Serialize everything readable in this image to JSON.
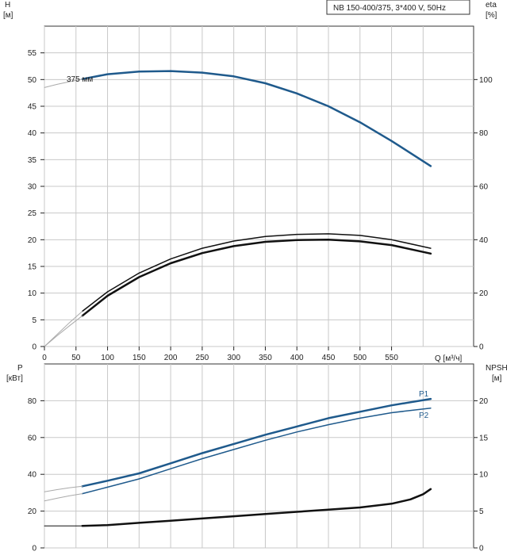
{
  "title": "NB 150-400/375, 3*400 V, 50Hz",
  "colors": {
    "blue": "#1f5a8c",
    "black": "#111111",
    "thin": "#aaaaaa",
    "grid": "#c8c8c8"
  },
  "chart_data": [
    {
      "type": "line",
      "name": "performance",
      "x_label": "Q [м³/ч]",
      "x_ticks": [
        0,
        50,
        100,
        150,
        200,
        250,
        300,
        350,
        400,
        450,
        500,
        550
      ],
      "xlim": [
        0,
        680
      ],
      "left_axis": {
        "label_top": "H",
        "label_unit": "[м]",
        "ylim": [
          0,
          60
        ],
        "ticks": [
          0,
          5,
          10,
          15,
          20,
          25,
          30,
          35,
          40,
          45,
          50,
          55
        ]
      },
      "right_axis": {
        "label_top": "eta",
        "label_unit": "[%]",
        "ylim": [
          0,
          120
        ],
        "ticks": [
          0,
          20,
          40,
          60,
          80,
          100
        ]
      },
      "annotations": [
        {
          "text": "375 мм",
          "x": 60,
          "y": 50.1
        }
      ],
      "series": [
        {
          "axis": "left",
          "color": "#1f5a8c",
          "width": 2.5,
          "label": "375 мм",
          "x": [
            60,
            100,
            150,
            200,
            250,
            300,
            350,
            400,
            450,
            500,
            550,
            612
          ],
          "y": [
            50.1,
            51.0,
            51.5,
            51.6,
            51.3,
            50.6,
            49.3,
            47.4,
            45.0,
            42.0,
            38.5,
            33.8
          ]
        },
        {
          "axis": "left",
          "color": "#aaaaaa",
          "width": 1,
          "label": "",
          "x": [
            0,
            20,
            40,
            60
          ],
          "y": [
            48.5,
            49.1,
            49.6,
            50.1
          ]
        },
        {
          "axis": "right",
          "color": "#111111",
          "width": 1.5,
          "label": "",
          "x": [
            60,
            100,
            150,
            200,
            250,
            300,
            350,
            400,
            450,
            500,
            550,
            612
          ],
          "y": [
            13.2,
            20.5,
            27.5,
            32.8,
            36.8,
            39.5,
            41.2,
            42.0,
            42.2,
            41.6,
            40.0,
            36.8
          ]
        },
        {
          "axis": "right",
          "color": "#111111",
          "width": 2.5,
          "label": "",
          "x": [
            60,
            100,
            150,
            200,
            250,
            300,
            350,
            400,
            450,
            500,
            550,
            612
          ],
          "y": [
            11.5,
            19.0,
            26.0,
            31.2,
            35.0,
            37.6,
            39.2,
            39.9,
            40.0,
            39.4,
            38.0,
            34.8
          ]
        },
        {
          "axis": "right",
          "color": "#aaaaaa",
          "width": 1,
          "label": "",
          "x": [
            0,
            20,
            40,
            60
          ],
          "y": [
            0,
            4.5,
            9.0,
            13.2
          ]
        },
        {
          "axis": "right",
          "color": "#aaaaaa",
          "width": 1,
          "label": "",
          "x": [
            0,
            20,
            40,
            60
          ],
          "y": [
            0,
            4.0,
            7.8,
            11.5
          ]
        }
      ]
    },
    {
      "type": "line",
      "name": "power-npsh",
      "xlim": [
        0,
        680
      ],
      "left_axis": {
        "label_top": "P",
        "label_unit": "[кВт]",
        "ylim": [
          0,
          100
        ],
        "ticks": [
          0,
          20,
          40,
          60,
          80
        ]
      },
      "right_axis": {
        "label_top": "NPSH",
        "label_unit": "[м]",
        "ylim": [
          0,
          25
        ],
        "ticks": [
          0,
          5,
          10,
          15,
          20
        ]
      },
      "series": [
        {
          "axis": "left",
          "color": "#1f5a8c",
          "width": 2.5,
          "label": "P1",
          "x": [
            60,
            100,
            150,
            200,
            250,
            300,
            350,
            400,
            450,
            500,
            550,
            612
          ],
          "y": [
            33.5,
            36.5,
            40.5,
            46.0,
            51.5,
            56.5,
            61.5,
            66.0,
            70.5,
            74.0,
            77.5,
            81.0
          ]
        },
        {
          "axis": "left",
          "color": "#1f5a8c",
          "width": 1.5,
          "label": "P2",
          "x": [
            60,
            100,
            150,
            200,
            250,
            300,
            350,
            400,
            450,
            500,
            550,
            612
          ],
          "y": [
            29.5,
            33.0,
            37.5,
            43.0,
            48.5,
            53.5,
            58.5,
            63.0,
            67.0,
            70.5,
            73.5,
            76.0
          ]
        },
        {
          "axis": "left",
          "color": "#aaaaaa",
          "width": 1,
          "label": "",
          "x": [
            0,
            20,
            40,
            60
          ],
          "y": [
            30.5,
            31.7,
            32.7,
            33.5
          ]
        },
        {
          "axis": "left",
          "color": "#aaaaaa",
          "width": 1,
          "label": "",
          "x": [
            0,
            20,
            40,
            60
          ],
          "y": [
            25.5,
            27.0,
            28.3,
            29.5
          ]
        },
        {
          "axis": "right",
          "color": "#111111",
          "width": 2.5,
          "label": "",
          "x": [
            60,
            100,
            150,
            200,
            250,
            300,
            350,
            400,
            450,
            500,
            550,
            580,
            600,
            612
          ],
          "y": [
            3.0,
            3.1,
            3.4,
            3.7,
            4.0,
            4.3,
            4.6,
            4.9,
            5.2,
            5.5,
            6.0,
            6.6,
            7.3,
            8.0
          ]
        },
        {
          "axis": "right",
          "color": "#111111",
          "width": 1,
          "label": "",
          "x": [
            0,
            60
          ],
          "y": [
            3.0,
            3.0
          ]
        }
      ]
    }
  ]
}
